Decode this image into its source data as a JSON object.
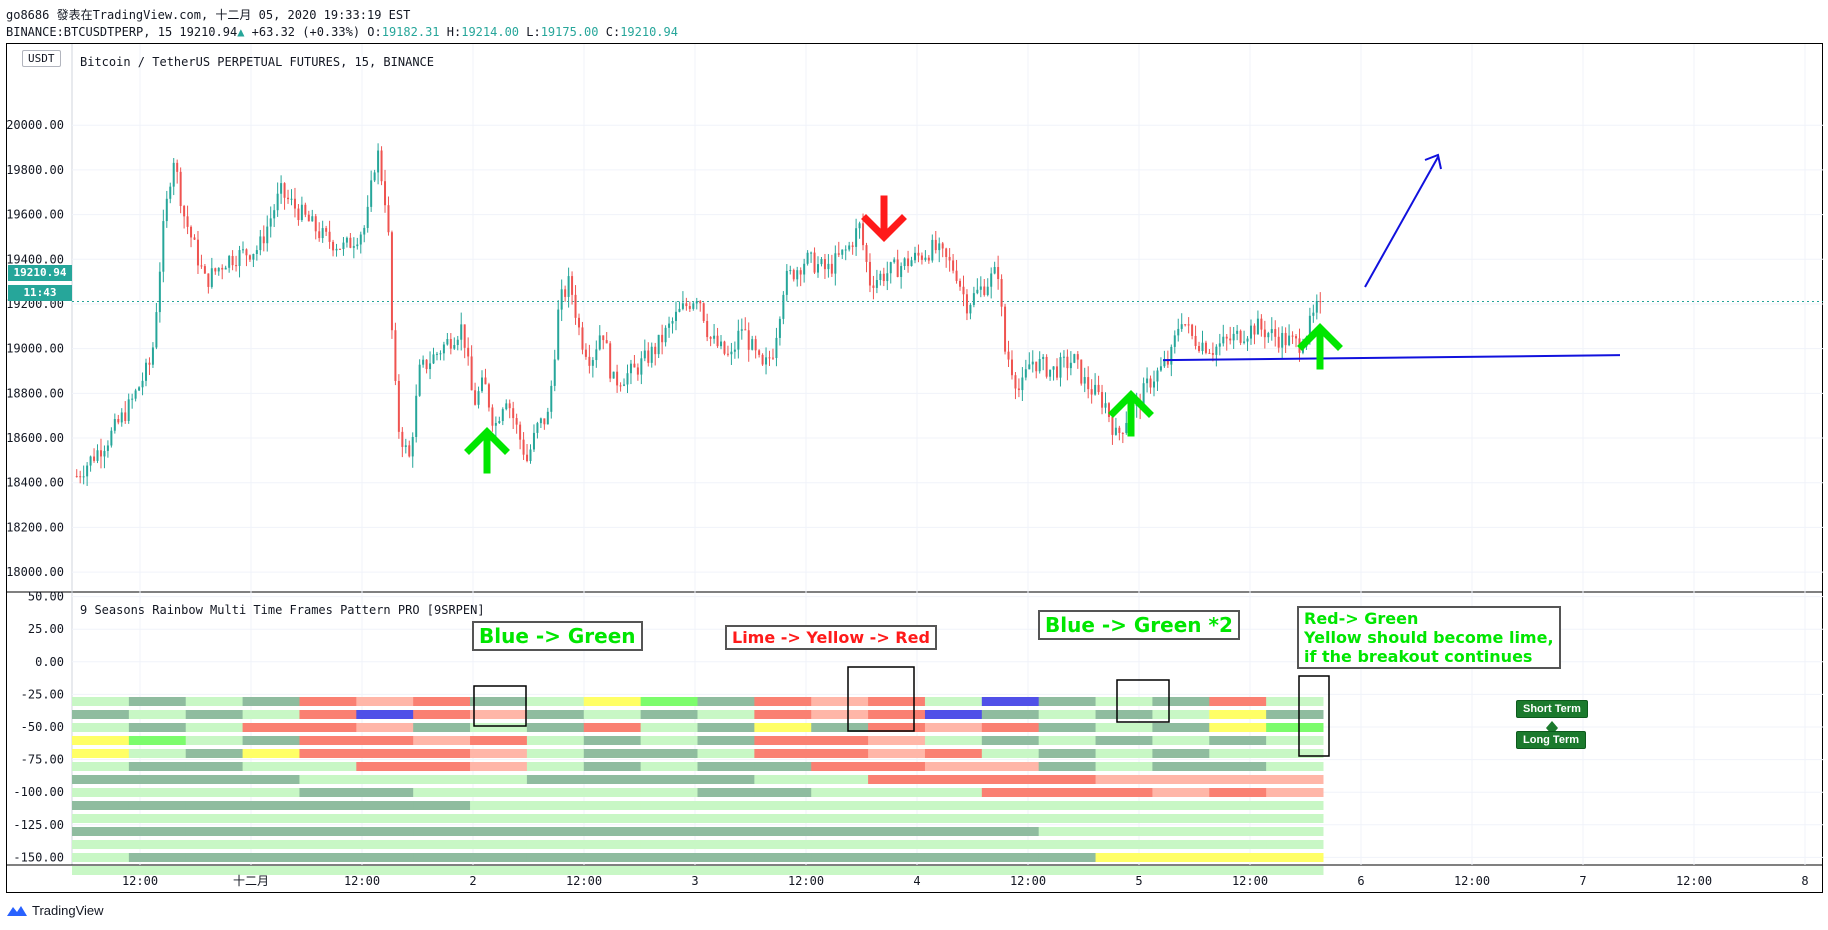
{
  "header": {
    "line1": "go8686 發表在TradingView.com, 十二月 05, 2020 19:33:19 EST",
    "symbol": "BINANCE:BTCUSDTPERP, 15",
    "last": "19210.94",
    "change_arrow": "▲",
    "change": "+63.32 (+0.33%)",
    "o_label": "O:",
    "o_value": "19182.31",
    "h_label": "H:",
    "h_value": "19214.00",
    "l_label": "L:",
    "l_value": "19175.00",
    "c_label": "C:",
    "c_value": "19210.94"
  },
  "chart_header": {
    "currency_button": "USDT",
    "main_title": "Bitcoin / TetherUS PERPETUAL FUTURES, 15, BINANCE",
    "indicator_title": "9 Seasons Rainbow Multi Time Frames Pattern PRO [9SRPEN]",
    "price_badge": "19210.94",
    "countdown_badge": "11:43"
  },
  "annotations": {
    "callout_1": "Blue -> Green",
    "callout_2": "Lime -> Yellow -> Red",
    "callout_3": "Blue -> Green *2",
    "callout_4_line1": "Red-> Green",
    "callout_4_line2": "Yellow should become lime,",
    "callout_4_line3": " if the breakout continues",
    "short_term": "Short Term",
    "long_term": "Long Term"
  },
  "footer": {
    "brand": "TradingView",
    "logo_icon": "tradingview-logo-icon"
  },
  "colors": {
    "up": "#26a69a",
    "down": "#ef5350",
    "grid": "#f0f3fa",
    "axis_text": "#131722",
    "blue_line": "#1111dd",
    "green_arrow": "#00e600",
    "red_arrow": "#ff1a1a",
    "band_palette": [
      "#c8f7c5",
      "#8fbc9f",
      "#fa8072",
      "#ffb6a8",
      "#ffff66",
      "#7cfc6c",
      "#5050e8",
      "#ff8c5a"
    ]
  },
  "chart_data": {
    "type": "candlestick",
    "title": "Bitcoin / TetherUS PERPETUAL FUTURES, 15, BINANCE",
    "price_axis_ticks": [
      "20000.00",
      "19800.00",
      "19600.00",
      "19400.00",
      "19200.00",
      "19000.00",
      "18800.00",
      "18600.00",
      "18400.00",
      "18200.00",
      "18000.00"
    ],
    "price_ylim": [
      17920,
      20180
    ],
    "last_price": 19210.94,
    "x_tick_labels": [
      "12:00",
      "十二月",
      "12:00",
      "2",
      "12:00",
      "3",
      "12:00",
      "4",
      "12:00",
      "5",
      "12:00",
      "6",
      "12:00",
      "7",
      "12:00",
      "8"
    ],
    "close_path": [
      [
        0,
        18430
      ],
      [
        3,
        18600
      ],
      [
        5,
        18750
      ],
      [
        7,
        18950
      ],
      [
        8,
        19500
      ],
      [
        9,
        19870
      ],
      [
        10,
        19600
      ],
      [
        12,
        19300
      ],
      [
        14,
        19400
      ],
      [
        17,
        19450
      ],
      [
        19,
        19700
      ],
      [
        21,
        19600
      ],
      [
        23,
        19500
      ],
      [
        25,
        19450
      ],
      [
        27,
        19550
      ],
      [
        28,
        19900
      ],
      [
        29,
        19600
      ],
      [
        29.5,
        18950
      ],
      [
        30,
        18650
      ],
      [
        31,
        18500
      ],
      [
        32,
        18900
      ],
      [
        34,
        19000
      ],
      [
        36,
        19100
      ],
      [
        37,
        18750
      ],
      [
        38,
        18850
      ],
      [
        39,
        18650
      ],
      [
        40,
        18800
      ],
      [
        42,
        18500
      ],
      [
        43,
        18650
      ],
      [
        44,
        18700
      ],
      [
        45,
        19200
      ],
      [
        46,
        19300
      ],
      [
        47,
        19050
      ],
      [
        48,
        18950
      ],
      [
        49,
        19100
      ],
      [
        50,
        18850
      ],
      [
        52,
        18900
      ],
      [
        54,
        19000
      ],
      [
        56,
        19150
      ],
      [
        58,
        19250
      ],
      [
        59,
        19050
      ],
      [
        61,
        18950
      ],
      [
        62,
        19100
      ],
      [
        64,
        18900
      ],
      [
        65,
        19000
      ],
      [
        66,
        19300
      ],
      [
        68,
        19400
      ],
      [
        70,
        19350
      ],
      [
        72,
        19450
      ],
      [
        73,
        19550
      ],
      [
        74,
        19300
      ],
      [
        76,
        19350
      ],
      [
        78,
        19400
      ],
      [
        80,
        19450
      ],
      [
        82,
        19350
      ],
      [
        83,
        19200
      ],
      [
        84,
        19250
      ],
      [
        85,
        19300
      ],
      [
        86,
        19350
      ],
      [
        86.5,
        19000
      ],
      [
        87,
        18950
      ],
      [
        88,
        18800
      ],
      [
        89,
        18950
      ],
      [
        91,
        18900
      ],
      [
        93,
        18950
      ],
      [
        94,
        18850
      ],
      [
        96,
        18750
      ],
      [
        97,
        18600
      ],
      [
        98,
        18700
      ],
      [
        99,
        18750
      ],
      [
        100,
        18850
      ],
      [
        101,
        18900
      ],
      [
        102,
        18950
      ],
      [
        103,
        19150
      ],
      [
        104,
        19050
      ],
      [
        106,
        19000
      ],
      [
        108,
        19050
      ],
      [
        110,
        19100
      ],
      [
        112,
        19050
      ],
      [
        114,
        19020
      ],
      [
        115,
        19100
      ],
      [
        116,
        19210
      ]
    ],
    "price_range_start": 18400,
    "price_range_end": 19210,
    "trend_line_level": 18953,
    "oscillator_axis_ticks": [
      "50.00",
      "25.00",
      "0.00",
      "-25.00",
      "-50.00",
      "-75.00",
      "-100.00",
      "-125.00",
      "-150.00"
    ],
    "oscillator_ylim": [
      -152,
      52
    ]
  }
}
